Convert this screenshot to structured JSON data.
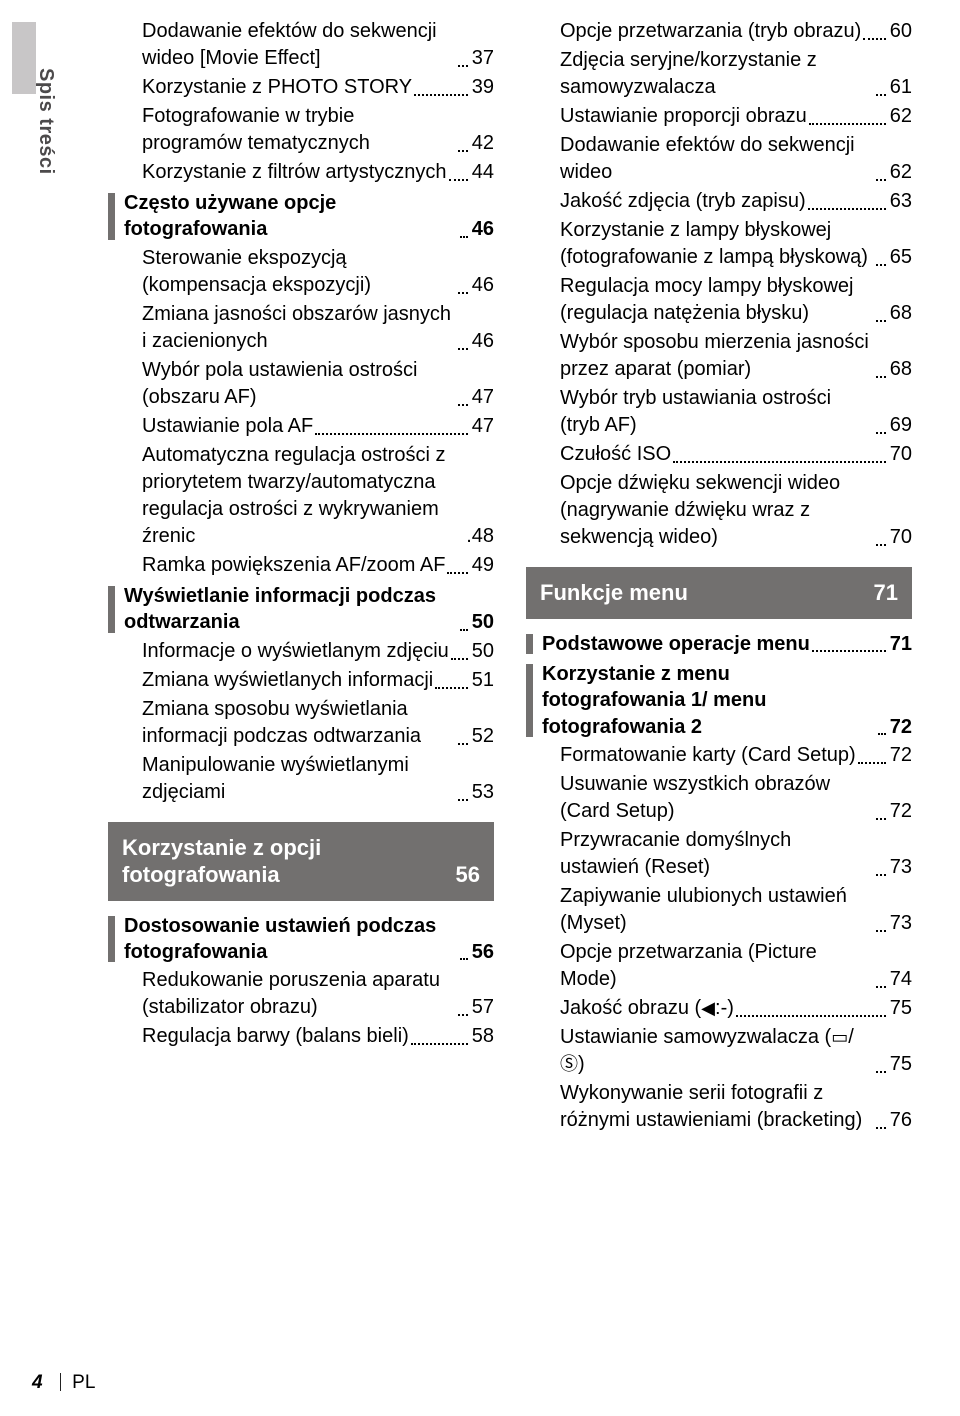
{
  "sideLabel": "Spis treści",
  "footer": {
    "pageNumber": "4",
    "lang": "PL"
  },
  "leftCol": [
    {
      "type": "item",
      "indent": 1,
      "text": "Dodawanie efektów do sekwencji wideo [Movie Effect]",
      "page": "37"
    },
    {
      "type": "item",
      "indent": 1,
      "text": "Korzystanie z PHOTO STORY",
      "page": "39"
    },
    {
      "type": "item",
      "indent": 1,
      "text": "Fotografowanie w trybie programów tematycznych",
      "page": "42"
    },
    {
      "type": "item",
      "indent": 1,
      "text": "Korzystanie z filtrów artystycznych",
      "page": "44"
    },
    {
      "type": "section",
      "text": "Często używane opcje fotografowania",
      "page": "46"
    },
    {
      "type": "item",
      "indent": 1,
      "text": "Sterowanie ekspozycją (kompensacja ekspozycji)",
      "page": "46"
    },
    {
      "type": "item",
      "indent": 1,
      "text": "Zmiana jasności obszarów jasnych i zacienionych",
      "page": "46"
    },
    {
      "type": "item",
      "indent": 1,
      "text": "Wybór pola ustawienia ostrości (obszaru AF)",
      "page": "47"
    },
    {
      "type": "item",
      "indent": 1,
      "text": "Ustawianie pola AF",
      "page": "47"
    },
    {
      "type": "item",
      "indent": 1,
      "text": "Automatyczna regulacja ostrości z priorytetem twarzy/automatyczna regulacja ostrości z wykrywaniem źrenic",
      "page": "48",
      "nodots": true
    },
    {
      "type": "item",
      "indent": 1,
      "text": "Ramka powiększenia AF/zoom AF",
      "page": "49"
    },
    {
      "type": "section",
      "text": "Wyświetlanie informacji podczas odtwarzania",
      "page": "50"
    },
    {
      "type": "item",
      "indent": 1,
      "text": "Informacje o wyświetlanym zdjęciu",
      "page": "50"
    },
    {
      "type": "item",
      "indent": 1,
      "text": "Zmiana wyświetlanych informacji",
      "page": "51"
    },
    {
      "type": "item",
      "indent": 1,
      "text": "Zmiana sposobu wyświetlania informacji podczas odtwarzania",
      "page": "52"
    },
    {
      "type": "item",
      "indent": 1,
      "text": "Manipulowanie wyświetlanymi zdjęciami",
      "page": "53"
    },
    {
      "type": "chapter",
      "text": "Korzystanie z opcji fotografowania",
      "page": "56"
    },
    {
      "type": "section",
      "text": "Dostosowanie ustawień podczas fotografowania",
      "page": "56"
    },
    {
      "type": "item",
      "indent": 1,
      "text": "Redukowanie poruszenia aparatu (stabilizator obrazu)",
      "page": "57"
    },
    {
      "type": "item",
      "indent": 1,
      "text": "Regulacja barwy (balans bieli)",
      "page": "58"
    }
  ],
  "rightCol": [
    {
      "type": "item",
      "indent": 1,
      "text": "Opcje przetwarzania (tryb obrazu)",
      "page": "60"
    },
    {
      "type": "item",
      "indent": 1,
      "text": "Zdjęcia seryjne/korzystanie z samowyzwalacza",
      "page": "61"
    },
    {
      "type": "item",
      "indent": 1,
      "text": "Ustawianie proporcji obrazu",
      "page": "62"
    },
    {
      "type": "item",
      "indent": 1,
      "text": "Dodawanie efektów do sekwencji wideo",
      "page": "62"
    },
    {
      "type": "item",
      "indent": 1,
      "text": "Jakość zdjęcia (tryb zapisu)",
      "page": "63"
    },
    {
      "type": "item",
      "indent": 1,
      "text": "Korzystanie z lampy błyskowej (fotografowanie z lampą błyskową)",
      "page": "65"
    },
    {
      "type": "item",
      "indent": 1,
      "text": "Regulacja mocy lampy błyskowej (regulacja natężenia błysku)",
      "page": "68"
    },
    {
      "type": "item",
      "indent": 1,
      "text": "Wybór sposobu mierzenia jasności przez aparat (pomiar)",
      "page": "68"
    },
    {
      "type": "item",
      "indent": 1,
      "text": "Wybór tryb ustawiania ostrości (tryb AF)",
      "page": "69"
    },
    {
      "type": "item",
      "indent": 1,
      "text": "Czułość ISO",
      "page": "70"
    },
    {
      "type": "item",
      "indent": 1,
      "text": "Opcje dźwięku sekwencji wideo (nagrywanie dźwięku wraz z sekwencją wideo)",
      "page": "70"
    },
    {
      "type": "chapter",
      "text": "Funkcje menu",
      "page": "71"
    },
    {
      "type": "section",
      "text": "Podstawowe operacje menu",
      "page": "71"
    },
    {
      "type": "section",
      "text": "Korzystanie z menu fotografowania 1/ menu fotografowania 2",
      "page": "72"
    },
    {
      "type": "item",
      "indent": 1,
      "text": "Formatowanie karty (Card Setup)",
      "page": "72"
    },
    {
      "type": "item",
      "indent": 1,
      "text": "Usuwanie wszystkich obrazów (Card Setup)",
      "page": "72"
    },
    {
      "type": "item",
      "indent": 1,
      "text": "Przywracanie domyślnych ustawień (Reset)",
      "page": "73"
    },
    {
      "type": "item",
      "indent": 1,
      "text": "Zapiywanie ulubionych ustawień (Myset)",
      "page": "73"
    },
    {
      "type": "item",
      "indent": 1,
      "text": "Opcje przetwarzania (Picture Mode)",
      "page": "74"
    },
    {
      "type": "item",
      "indent": 1,
      "text": "Jakość obrazu (<span class='icon-glyph'>◀</span>:-)",
      "page": "75",
      "raw": true
    },
    {
      "type": "item",
      "indent": 1,
      "text": "Ustawianie samowyzwalacza (<span class='icon-glyph'>▭</span>/<span class='icon-glyph'>Ⓢ</span>)",
      "page": "75",
      "raw": true
    },
    {
      "type": "item",
      "indent": 1,
      "text": "Wykonywanie serii fotografii z różnymi ustawieniami (bracketing)",
      "page": "76"
    }
  ]
}
